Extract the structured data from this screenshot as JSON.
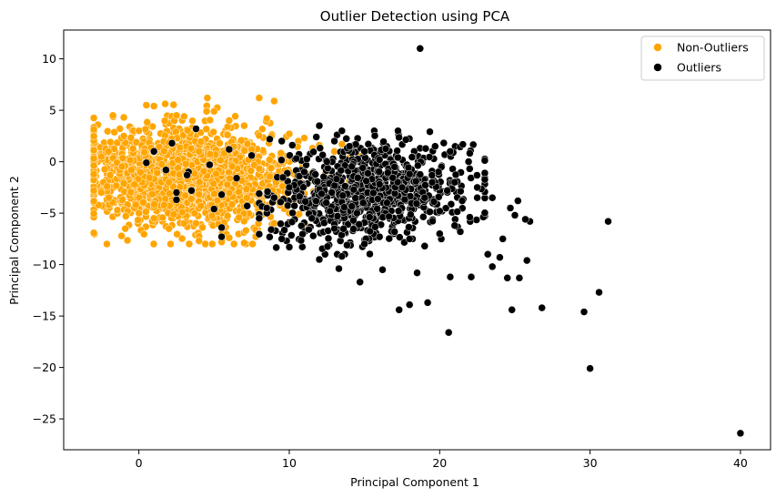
{
  "chart_data": {
    "type": "scatter",
    "title": "Outlier Detection using PCA",
    "xlabel": "Principal Component 1",
    "ylabel": "Principal Component 2",
    "xlim": [
      -5,
      42
    ],
    "ylim": [
      -28,
      12.8
    ],
    "x_ticks": [
      0,
      10,
      20,
      30,
      40
    ],
    "y_ticks": [
      10,
      5,
      0,
      -5,
      -10,
      -15,
      -20,
      -25
    ],
    "x_tick_labels": [
      "0",
      "10",
      "20",
      "30",
      "40"
    ],
    "y_tick_labels": [
      "10",
      "5",
      "0",
      "−5",
      "−10",
      "−15",
      "−20",
      "−25"
    ],
    "grid": false,
    "legend_position": "top-right",
    "series": [
      {
        "name": "Non-Outliers",
        "color": "#ffa500",
        "cluster": {
          "x_range": [
            -3,
            15
          ],
          "y_range": [
            -8,
            6.2
          ],
          "center": [
            3,
            -1.5
          ]
        },
        "points": [
          [
            8,
            6.2
          ],
          [
            9,
            5.9
          ],
          [
            1,
            5.4
          ],
          [
            0.5,
            5.5
          ],
          [
            5,
            4.9
          ],
          [
            4.5,
            4.9
          ],
          [
            8.5,
            4.2
          ],
          [
            2.5,
            4.5
          ],
          [
            -1,
            4.3
          ],
          [
            3,
            4.4
          ],
          [
            6,
            4.0
          ],
          [
            7,
            3.5
          ],
          [
            10,
            2.7
          ],
          [
            11,
            2.3
          ],
          [
            12,
            1.6
          ],
          [
            13,
            1.0
          ],
          [
            14,
            0.4
          ],
          [
            15,
            -0.4
          ],
          [
            -3,
            -1.2
          ],
          [
            -2.5,
            0.5
          ],
          [
            -2.5,
            -3.0
          ],
          [
            -2.0,
            -3.5
          ],
          [
            0,
            -5.0
          ],
          [
            1,
            -5.5
          ],
          [
            3,
            -6.0
          ],
          [
            4,
            -7.7
          ],
          [
            5.5,
            -7.8
          ],
          [
            6,
            -7.4
          ],
          [
            7,
            -7.9
          ],
          [
            8,
            -7.0
          ],
          [
            2,
            -6.5
          ],
          [
            9,
            -6.0
          ],
          [
            10,
            -5.0
          ],
          [
            11,
            -4.0
          ],
          [
            12,
            -3.0
          ],
          [
            13,
            -2.0
          ],
          [
            -1,
            2.5
          ],
          [
            0,
            3.0
          ],
          [
            2,
            -2.0
          ],
          [
            4,
            1.0
          ]
        ]
      },
      {
        "name": "Outliers",
        "color": "#000000",
        "cluster": {
          "x_range": [
            8,
            23
          ],
          "y_range": [
            -9,
            3
          ],
          "center": [
            15.5,
            -3
          ]
        },
        "points": [
          [
            18.7,
            11.0
          ],
          [
            40,
            -26.4
          ],
          [
            30,
            -20.1
          ],
          [
            29.6,
            -14.6
          ],
          [
            30.6,
            -12.7
          ],
          [
            31.2,
            -5.8
          ],
          [
            26.8,
            -14.2
          ],
          [
            24.8,
            -14.4
          ],
          [
            20.6,
            -16.6
          ],
          [
            17.3,
            -14.4
          ],
          [
            18,
            -13.9
          ],
          [
            19.2,
            -13.7
          ],
          [
            14.7,
            -11.7
          ],
          [
            13.3,
            -10.4
          ],
          [
            16.2,
            -10.5
          ],
          [
            18.5,
            -10.8
          ],
          [
            20.7,
            -11.2
          ],
          [
            22.1,
            -11.2
          ],
          [
            24.5,
            -11.3
          ],
          [
            25.3,
            -11.3
          ],
          [
            23.5,
            -10.2
          ],
          [
            24,
            -9.3
          ],
          [
            23.2,
            -9.0
          ],
          [
            25.8,
            -9.6
          ],
          [
            24.2,
            -7.5
          ],
          [
            25,
            -5.2
          ],
          [
            26,
            -5.8
          ],
          [
            25.7,
            -5.6
          ],
          [
            24.7,
            -4.5
          ],
          [
            25.2,
            -3.8
          ],
          [
            23.5,
            -3.5
          ],
          [
            22.5,
            -3.5
          ],
          [
            19.7,
            1.5
          ],
          [
            12,
            3.5
          ],
          [
            13.5,
            3.0
          ],
          [
            11.8,
            2.4
          ],
          [
            9.5,
            2.0
          ],
          [
            8.7,
            2.2
          ],
          [
            10.2,
            1.6
          ],
          [
            6,
            1.2
          ],
          [
            7.5,
            0.6
          ],
          [
            3.8,
            3.2
          ],
          [
            2.2,
            1.8
          ],
          [
            1.0,
            1.0
          ],
          [
            0.5,
            -0.1
          ],
          [
            3.3,
            -1.0
          ],
          [
            4.7,
            -0.3
          ],
          [
            1.8,
            -0.8
          ],
          [
            3.2,
            -1.3
          ],
          [
            2.5,
            -3.0
          ],
          [
            2.5,
            -3.7
          ],
          [
            3.5,
            -2.8
          ],
          [
            5,
            -4.6
          ],
          [
            5.5,
            -3.2
          ],
          [
            5.5,
            -6.4
          ],
          [
            5.5,
            -7.3
          ],
          [
            6.5,
            -1.6
          ],
          [
            7.2,
            -4.3
          ],
          [
            8,
            -5.5
          ],
          [
            8.8,
            -6.6
          ],
          [
            9.5,
            -7.5
          ],
          [
            10,
            -8.3
          ],
          [
            12,
            -9.5
          ],
          [
            13.5,
            -9.2
          ],
          [
            15,
            -8.0
          ],
          [
            16,
            -7.3
          ],
          [
            17,
            -6.8
          ],
          [
            18,
            -7.5
          ],
          [
            19,
            -8.2
          ],
          [
            20,
            -7.0
          ],
          [
            21,
            -6.2
          ],
          [
            22,
            -5.4
          ],
          [
            21.5,
            -3.8
          ],
          [
            20.5,
            -2.8
          ],
          [
            19.5,
            -2.0
          ],
          [
            18,
            -1.2
          ],
          [
            17,
            -0.5
          ],
          [
            16,
            0.2
          ],
          [
            15,
            1.0
          ],
          [
            14,
            1.5
          ],
          [
            13,
            2.0
          ],
          [
            12.5,
            0.0
          ],
          [
            11,
            -1.0
          ],
          [
            10,
            -2.5
          ],
          [
            9,
            -3.5
          ],
          [
            8.5,
            -4.5
          ],
          [
            11.5,
            -5.5
          ],
          [
            13,
            -6.5
          ],
          [
            14.5,
            -5.0
          ],
          [
            16.5,
            -4.0
          ],
          [
            17.5,
            -2.5
          ],
          [
            19,
            -3.5
          ],
          [
            20,
            -4.8
          ],
          [
            21,
            -2.0
          ],
          [
            22.5,
            -2.5
          ],
          [
            16,
            -2.2
          ]
        ]
      }
    ]
  }
}
